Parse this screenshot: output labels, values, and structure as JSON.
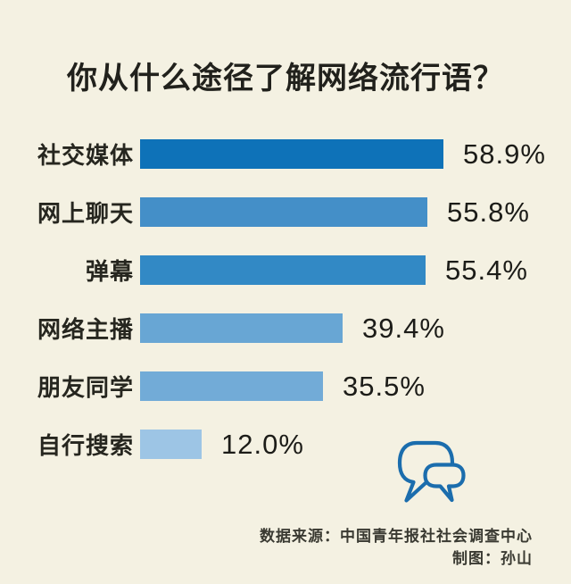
{
  "title": "你从什么途径了解网络流行语？",
  "background_color": "#f4f1e2",
  "chart_data": {
    "type": "bar",
    "orientation": "horizontal",
    "title": "你从什么途径了解网络流行语？",
    "categories": [
      "社交媒体",
      "网上聊天",
      "弹幕",
      "网络主播",
      "朋友同学",
      "自行搜索"
    ],
    "values": [
      58.9,
      55.8,
      55.4,
      39.4,
      35.5,
      12.0
    ],
    "value_labels": [
      "58.9%",
      "55.8%",
      "55.4%",
      "39.4%",
      "35.5%",
      "12.0%"
    ],
    "bar_colors": [
      "#0e72b8",
      "#448fc8",
      "#3289c5",
      "#68a6d4",
      "#72abd7",
      "#9dc5e5"
    ],
    "xlim": [
      0,
      100
    ],
    "grid": false,
    "legend": false,
    "value_label_position": "right-of-bar"
  },
  "footer": {
    "source": "数据来源：中国青年报社社会调查中心",
    "credit": "制图：孙山"
  },
  "icon": {
    "name": "speech-bubbles-icon",
    "color": "#1b6dad"
  }
}
